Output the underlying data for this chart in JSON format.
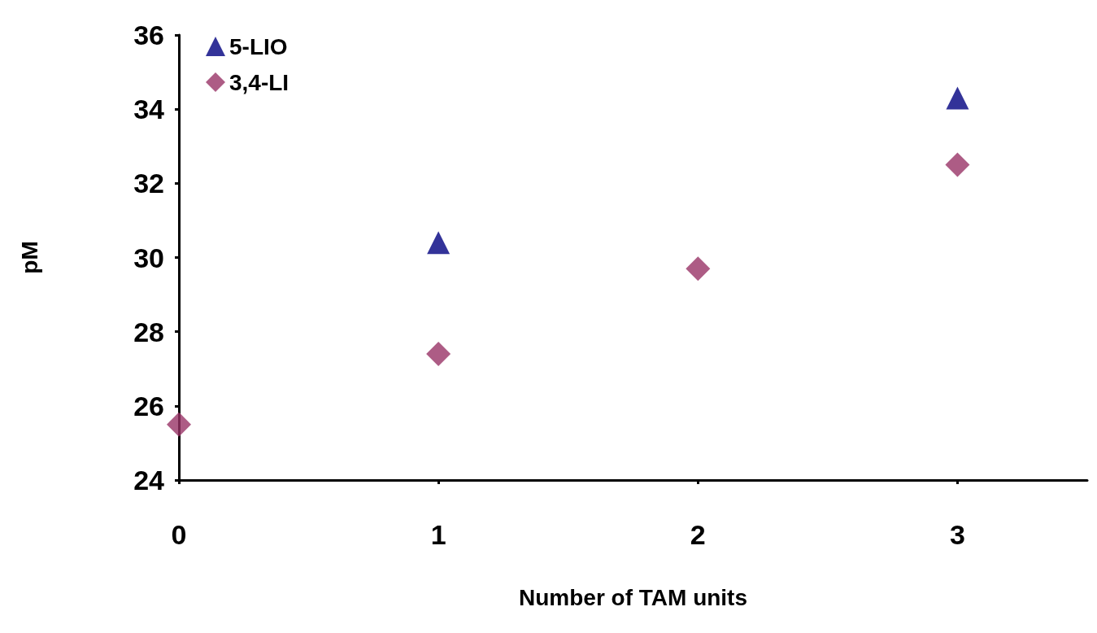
{
  "chart_data": {
    "type": "scatter",
    "xlabel": "Number of TAM units",
    "ylabel": "pM",
    "xlim": [
      0,
      3.5
    ],
    "xticks": [
      0,
      1,
      2,
      3
    ],
    "ylim": [
      24,
      36
    ],
    "yticks": [
      24,
      26,
      28,
      30,
      32,
      34,
      36
    ],
    "grid": false,
    "legend": "top left",
    "series": [
      {
        "name": "5-LIO",
        "color": "#000080",
        "marker": "triangle",
        "x": [
          1,
          3
        ],
        "values": [
          30.4,
          34.3
        ]
      },
      {
        "name": "3,4-LI",
        "color": "#993366",
        "marker": "diamond",
        "x": [
          0,
          1,
          2,
          3
        ],
        "values": [
          25.5,
          27.4,
          29.7,
          32.5
        ]
      }
    ]
  }
}
